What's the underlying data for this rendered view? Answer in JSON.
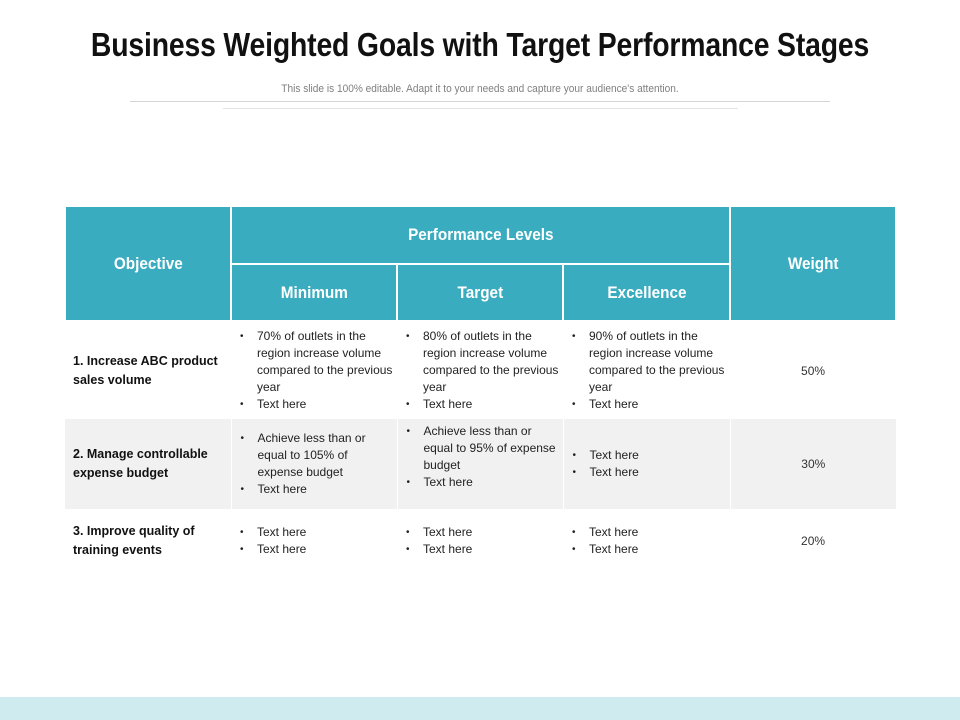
{
  "title": "Business Weighted Goals with Target Performance Stages",
  "subtitle": "This slide is 100% editable. Adapt it to your needs and capture your audience's attention.",
  "colors": {
    "header_fill": "#3aacc0",
    "row_shade": "#f1f1f1",
    "footer_band": "#cfebf0"
  },
  "table": {
    "headers": {
      "objective": "Objective",
      "performance_levels": "Performance Levels",
      "minimum": "Minimum",
      "target": "Target",
      "excellence": "Excellence",
      "weight": "Weight"
    },
    "rows": [
      {
        "objective": "1. Increase ABC product sales volume",
        "minimum": [
          "70% of outlets in the region increase volume compared to the previous year",
          "Text here"
        ],
        "target": [
          "80% of outlets in the region increase volume compared to the previous year",
          "Text here"
        ],
        "excellence": [
          "90% of outlets in the region increase volume compared to the previous year",
          "Text here"
        ],
        "weight": "50%"
      },
      {
        "objective": "2. Manage controllable expense budget",
        "minimum": [
          "Achieve less than or equal to 105% of expense budget",
          "Text here"
        ],
        "target": [
          "Achieve less than or equal to 95% of expense budget",
          "Text here"
        ],
        "excellence": [
          "Text here",
          "Text here"
        ],
        "weight": "30%"
      },
      {
        "objective": "3. Improve quality of training events",
        "minimum": [
          "Text here",
          "Text here"
        ],
        "target": [
          "Text here",
          "Text here"
        ],
        "excellence": [
          "Text here",
          "Text here"
        ],
        "weight": "20%"
      }
    ]
  }
}
